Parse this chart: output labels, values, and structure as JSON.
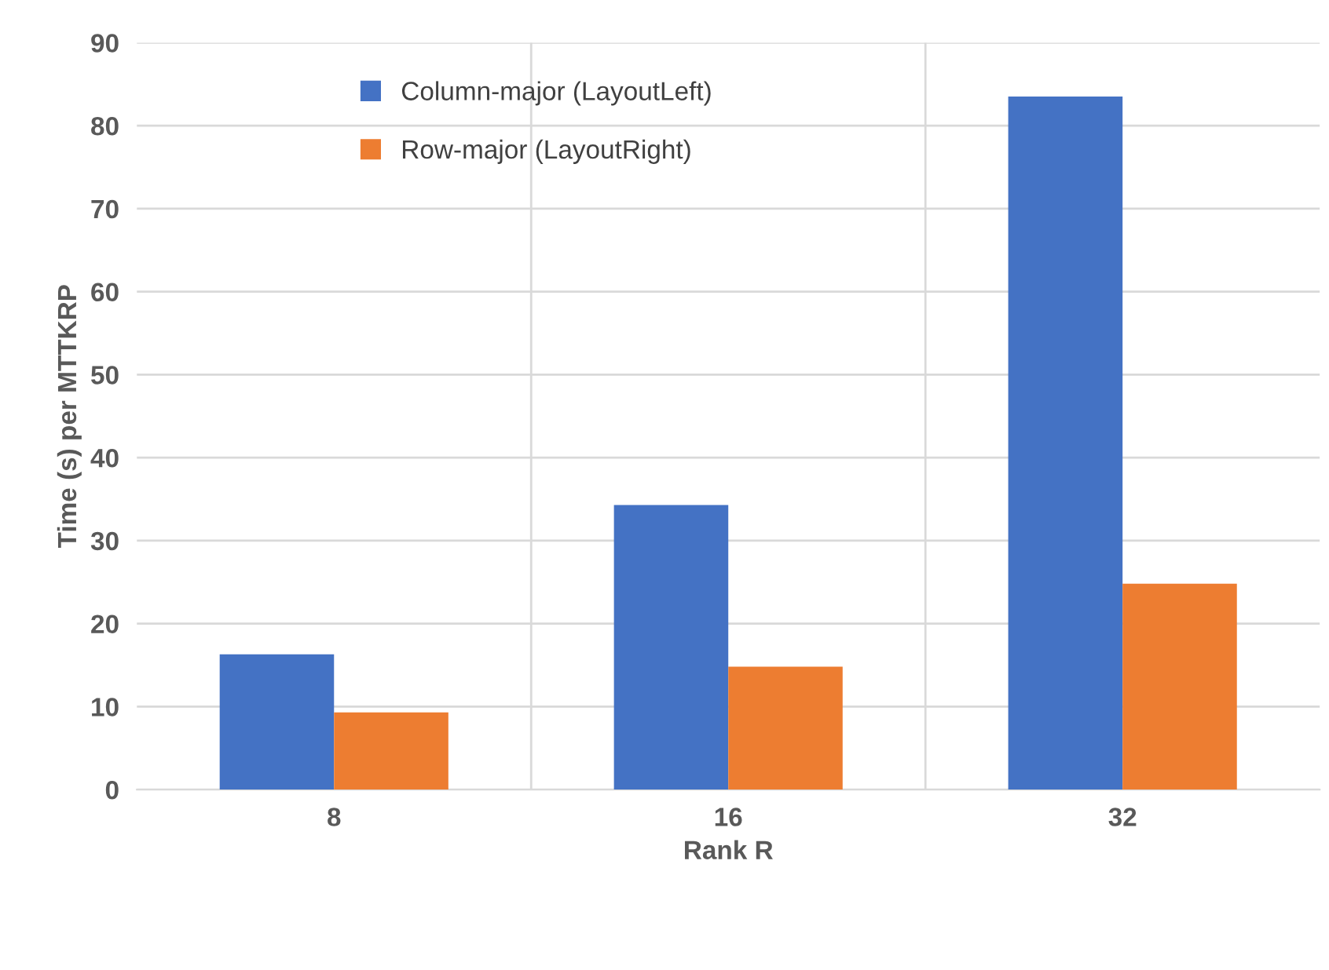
{
  "chart_data": {
    "type": "bar",
    "xlabel": "Rank R",
    "ylabel": "Time (s) per MTTKRP",
    "categories": [
      "8",
      "16",
      "32"
    ],
    "series": [
      {
        "name": "Column-major (LayoutLeft)",
        "color": "#4472c4",
        "values": [
          16.3,
          34.3,
          83.5
        ]
      },
      {
        "name": "Row-major (LayoutRight)",
        "color": "#ed7d31",
        "values": [
          9.3,
          14.8,
          24.8
        ]
      }
    ],
    "ylim": [
      0,
      90
    ],
    "yticks": [
      0,
      10,
      20,
      30,
      40,
      50,
      60,
      70,
      80,
      90
    ],
    "grid": true,
    "legend": "top left"
  }
}
